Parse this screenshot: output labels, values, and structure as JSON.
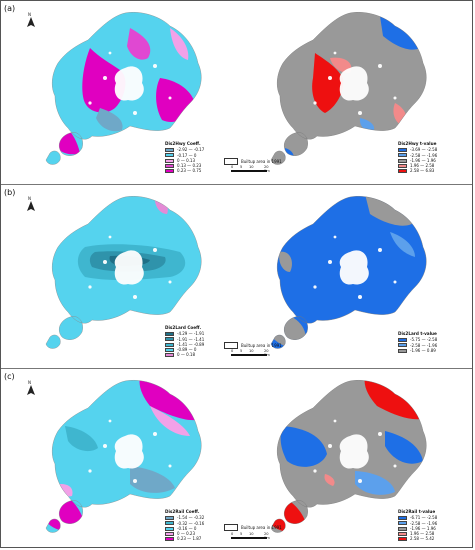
{
  "panels": [
    {
      "label": "(a)",
      "coef_legend": {
        "title": "Dis2Hwy Coeff.",
        "items": [
          {
            "label": "-2.92 — -0.17",
            "color": "#6fa8c8"
          },
          {
            "label": "-0.17 — 0",
            "color": "#55d3ee"
          },
          {
            "label": "0 — 0.13",
            "color": "#f2a1e8"
          },
          {
            "label": "0.13 — 0.23",
            "color": "#e048d2"
          },
          {
            "label": "0.23 — 0.75",
            "color": "#e000c0"
          }
        ]
      },
      "t_legend": {
        "title": "Dis2Hwy t-value",
        "items": [
          {
            "label": "-3.69 — -2.58",
            "color": "#1e6fe6"
          },
          {
            "label": "-2.58 — -1.96",
            "color": "#5ca0ec"
          },
          {
            "label": "-1.96 — 1.96",
            "color": "#999999"
          },
          {
            "label": "1.96 — 2.58",
            "color": "#f28a8a"
          },
          {
            "label": "2.58 — 6.83",
            "color": "#ee1010"
          }
        ]
      }
    },
    {
      "label": "(b)",
      "coef_legend": {
        "title": "Dis2Lard Coeff.",
        "items": [
          {
            "label": "-4.29 — -1.91",
            "color": "#1f6f86"
          },
          {
            "label": "-1.91 — -1.41",
            "color": "#2f93ab"
          },
          {
            "label": "-1.41 — -0.89",
            "color": "#3fb6cf"
          },
          {
            "label": "-0.89 — 0",
            "color": "#55d3ee"
          },
          {
            "label": "0 — 0.18",
            "color": "#e48ad6"
          }
        ]
      },
      "t_legend": {
        "title": "Dis2Lard t-value",
        "items": [
          {
            "label": "-5.75 — -2.58",
            "color": "#1e6fe6"
          },
          {
            "label": "-2.58 — -1.96",
            "color": "#5ca0ec"
          },
          {
            "label": "-1.96 — 0.89",
            "color": "#999999"
          }
        ]
      }
    },
    {
      "label": "(c)",
      "coef_legend": {
        "title": "Dis2Rail Coeff.",
        "items": [
          {
            "label": "-1.54 — -0.32",
            "color": "#6fa8c8"
          },
          {
            "label": "-0.32 — -0.16",
            "color": "#3fb6cf"
          },
          {
            "label": "-0.16 — 0",
            "color": "#55d3ee"
          },
          {
            "label": "0 — 0.23",
            "color": "#f2a1e8"
          },
          {
            "label": "0.23 — 1.87",
            "color": "#e000c0"
          }
        ]
      },
      "t_legend": {
        "title": "Dis2Rail t-value",
        "items": [
          {
            "label": "-6.71 — -2.58",
            "color": "#1e6fe6"
          },
          {
            "label": "-2.58 — -1.96",
            "color": "#5ca0ec"
          },
          {
            "label": "-1.96 — 1.96",
            "color": "#999999"
          },
          {
            "label": "1.96 — 2.58",
            "color": "#f28a8a"
          },
          {
            "label": "2.58 — 5.42",
            "color": "#ee1010"
          }
        ]
      }
    }
  ],
  "builtup_label": "Builtup area in 1991",
  "north_label": "N",
  "scale": {
    "ticks": [
      "0",
      "5",
      "10",
      "20 Km"
    ]
  }
}
